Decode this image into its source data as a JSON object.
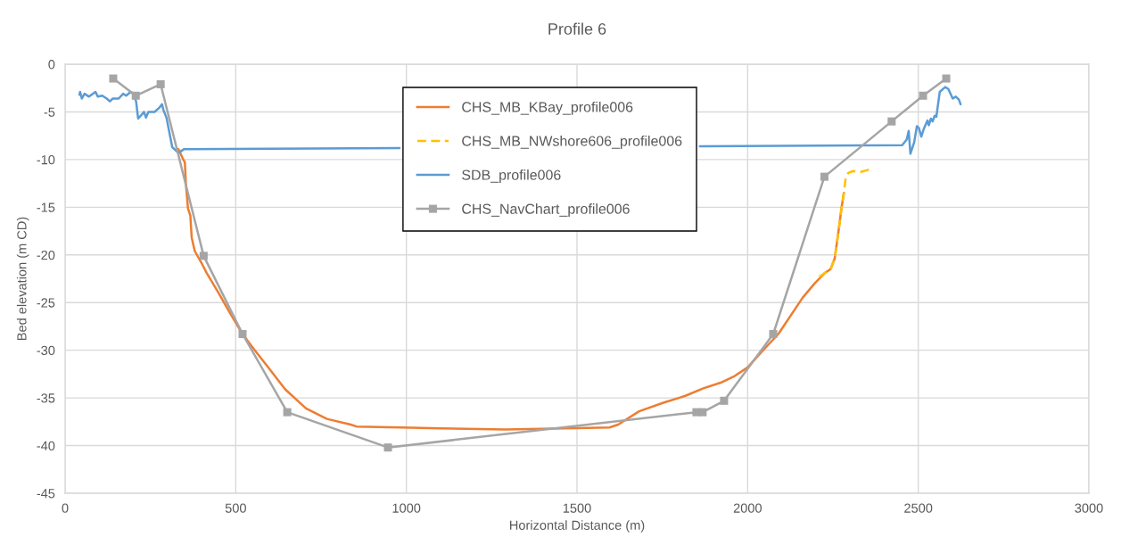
{
  "chart_data": {
    "type": "line",
    "title": "Profile 6",
    "xlabel": "Horizontal Distance (m)",
    "ylabel": "Bed elevation (m CD)",
    "xlim": [
      0,
      3000
    ],
    "ylim": [
      -45,
      0
    ],
    "xticks": [
      0,
      500,
      1000,
      1500,
      2000,
      2500,
      3000
    ],
    "yticks": [
      -45,
      -40,
      -35,
      -30,
      -25,
      -20,
      -15,
      -10,
      -5,
      0
    ],
    "grid": true,
    "legend": "top",
    "series": [
      {
        "name": "CHS_MB_KBay_profile006",
        "color": "#ed7d31",
        "marker": "none",
        "line_style": "solid",
        "x": [
          332,
          345,
          351,
          354,
          360,
          367,
          371,
          380,
          402,
          415,
          450,
          480,
          520,
          560,
          593,
          645,
          706,
          767,
          837,
          854,
          985,
          1100,
          1290,
          1463,
          1595,
          1621,
          1638,
          1682,
          1753,
          1816,
          1870,
          1921,
          1962,
          2000,
          2040,
          2090,
          2161,
          2196,
          2226,
          2243,
          2255,
          2266,
          2275,
          2282
        ],
        "values": [
          -8.9,
          -9.9,
          -10.3,
          -12.6,
          -15.1,
          -15.9,
          -18.2,
          -19.6,
          -21.0,
          -21.9,
          -24.0,
          -25.9,
          -28.3,
          -30.2,
          -31.7,
          -34.1,
          -36.1,
          -37.2,
          -37.8,
          -38.0,
          -38.1,
          -38.2,
          -38.3,
          -38.2,
          -38.1,
          -37.8,
          -37.4,
          -36.4,
          -35.5,
          -34.8,
          -34.0,
          -33.4,
          -32.7,
          -31.8,
          -30.2,
          -28.3,
          -24.5,
          -23.0,
          -21.9,
          -21.5,
          -20.4,
          -17.6,
          -15.1,
          -13.5
        ]
      },
      {
        "name": "CHS_MB_NWshore606_profile006",
        "color": "#ffc000",
        "marker": "none",
        "line_style": "dashed",
        "x": [
          2210,
          2226,
          2243,
          2255,
          2266,
          2275,
          2282,
          2287,
          2295,
          2309,
          2331,
          2352,
          2366
        ],
        "values": [
          -22.3,
          -21.9,
          -21.5,
          -20.4,
          -17.6,
          -15.1,
          -13.5,
          -12.0,
          -11.4,
          -11.2,
          -11.3,
          -11.1,
          -10.7
        ]
      },
      {
        "name": "SDB_profile006",
        "color": "#5b9bd5",
        "marker": "none",
        "line_style": "solid",
        "x": [
          42,
          44,
          49,
          57,
          70,
          89,
          96,
          109,
          122,
          131,
          140,
          157,
          170,
          179,
          192,
          200,
          208,
          209,
          214,
          222,
          231,
          237,
          244,
          262,
          275,
          284,
          288,
          297,
          314,
          332,
          349,
          980,
          1400,
          1860,
          2453,
          2466,
          2472,
          2477,
          2488,
          2496,
          2502,
          2509,
          2516,
          2527,
          2531,
          2537,
          2542,
          2548,
          2553,
          2563,
          2579,
          2588,
          2601,
          2610,
          2619,
          2624
        ],
        "values": [
          -3.2,
          -2.9,
          -3.6,
          -3.1,
          -3.4,
          -2.9,
          -3.4,
          -3.3,
          -3.6,
          -3.9,
          -3.6,
          -3.6,
          -3.1,
          -3.3,
          -2.9,
          -3.1,
          -3.9,
          -4.2,
          -5.7,
          -5.4,
          -5.0,
          -5.6,
          -5.0,
          -5.0,
          -4.6,
          -4.2,
          -4.8,
          -5.6,
          -8.7,
          -9.3,
          -8.9,
          -8.8,
          null,
          -8.6,
          -8.5,
          -7.9,
          -7.0,
          -9.4,
          -8.2,
          -6.5,
          -6.7,
          -7.6,
          -6.8,
          -5.9,
          -6.4,
          -5.7,
          -6.0,
          -5.4,
          -5.5,
          -2.9,
          -2.4,
          -2.6,
          -3.6,
          -3.4,
          -3.7,
          -4.2
        ]
      },
      {
        "name": "CHS_NavChart_profile006",
        "color": "#a5a5a5",
        "marker": "square",
        "line_style": "solid",
        "x": [
          141,
          207,
          280,
          406,
          520,
          651,
          946,
          1850,
          1868,
          1931,
          2075,
          2225,
          2422,
          2514,
          2582
        ],
        "values": [
          -1.5,
          -3.3,
          -2.1,
          -20.1,
          -28.3,
          -36.5,
          -40.2,
          -36.5,
          -36.5,
          -35.3,
          -28.3,
          -11.8,
          -6.0,
          -3.3,
          -1.5
        ]
      }
    ]
  }
}
